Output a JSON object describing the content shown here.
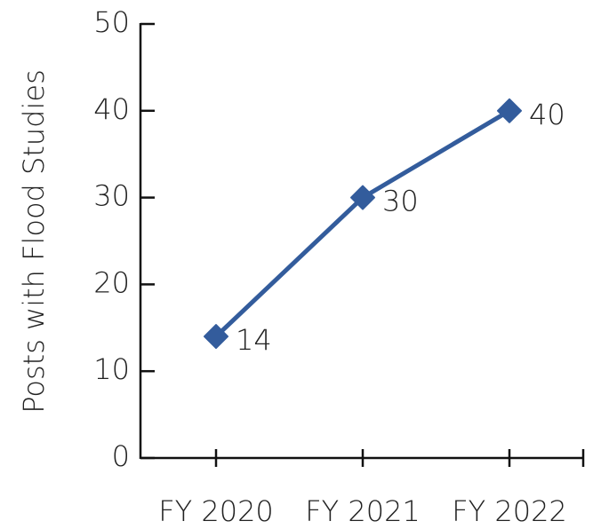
{
  "chart_data": {
    "type": "line",
    "y_label": "Posts with Flood Studies",
    "categories": [
      "FY 2020",
      "FY 2021",
      "FY 2022"
    ],
    "series": [
      {
        "name": "Posts with Flood Studies",
        "color": "#335c9c",
        "values": [
          14,
          30,
          40
        ]
      }
    ],
    "ylim": [
      0,
      50
    ],
    "yticks": [
      0,
      10,
      20,
      30,
      40,
      50
    ],
    "data_labels": true
  }
}
